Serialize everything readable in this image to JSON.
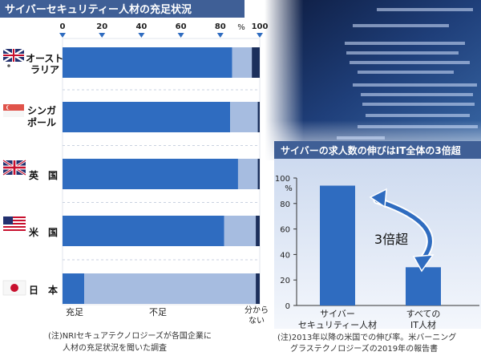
{
  "left_chart": {
    "title": "サイバーセキュリティー人材の充足状況",
    "unit": "%",
    "ticks": [
      "0",
      "20",
      "40",
      "60",
      "80",
      "100"
    ],
    "legend": {
      "sufficient": "充足",
      "insufficient": "不足",
      "unknown_line1": "分から",
      "unknown_line2": "ない"
    },
    "note_line1": "(注)NRIセキュアテクノロジーズが各国企業に",
    "note_line2": "人材の充足状況を聞いた調査"
  },
  "right_chart": {
    "title": "サイバーの求人数の伸びはIT全体の3倍超",
    "unit": "%",
    "y_ticks": [
      "0",
      "20",
      "40",
      "60",
      "80",
      "100"
    ],
    "bar1_line1": "サイバー",
    "bar1_line2": "セキュリティー人材",
    "bar2_line1": "すべての",
    "bar2_line2": "IT人材",
    "annotation": "3倍超",
    "note_line1": "(注)2013年以降の米国での伸び率。米バーニング",
    "note_line2": "グラステクノロジーズの2019年の報告書"
  },
  "colors": {
    "sufficient": "#2f6cc0",
    "insufficient": "#a6bce0",
    "unknown": "#1b2f5c",
    "title_bar": "#3f5f96",
    "accent": "#2f6cc0"
  },
  "chart_data": [
    {
      "type": "bar",
      "orientation": "horizontal",
      "stacked": true,
      "title": "サイバーセキュリティー人材の充足状況",
      "categories": [
        "オーストラリア",
        "シンガポール",
        "英国",
        "米国",
        "日本"
      ],
      "series": [
        {
          "name": "充足",
          "values": [
            86,
            85,
            89,
            82,
            11
          ]
        },
        {
          "name": "不足",
          "values": [
            10,
            14,
            10,
            16,
            87
          ]
        },
        {
          "name": "分からない",
          "values": [
            4,
            1,
            1,
            2,
            2
          ]
        }
      ],
      "xlim": [
        0,
        100
      ],
      "unit": "%"
    },
    {
      "type": "bar",
      "title": "サイバーの求人数の伸びはIT全体の3倍超",
      "categories": [
        "サイバーセキュリティー人材",
        "すべてのIT人材"
      ],
      "values": [
        94,
        30
      ],
      "ylim": [
        0,
        100
      ],
      "unit": "%",
      "annotation": "3倍超"
    }
  ]
}
